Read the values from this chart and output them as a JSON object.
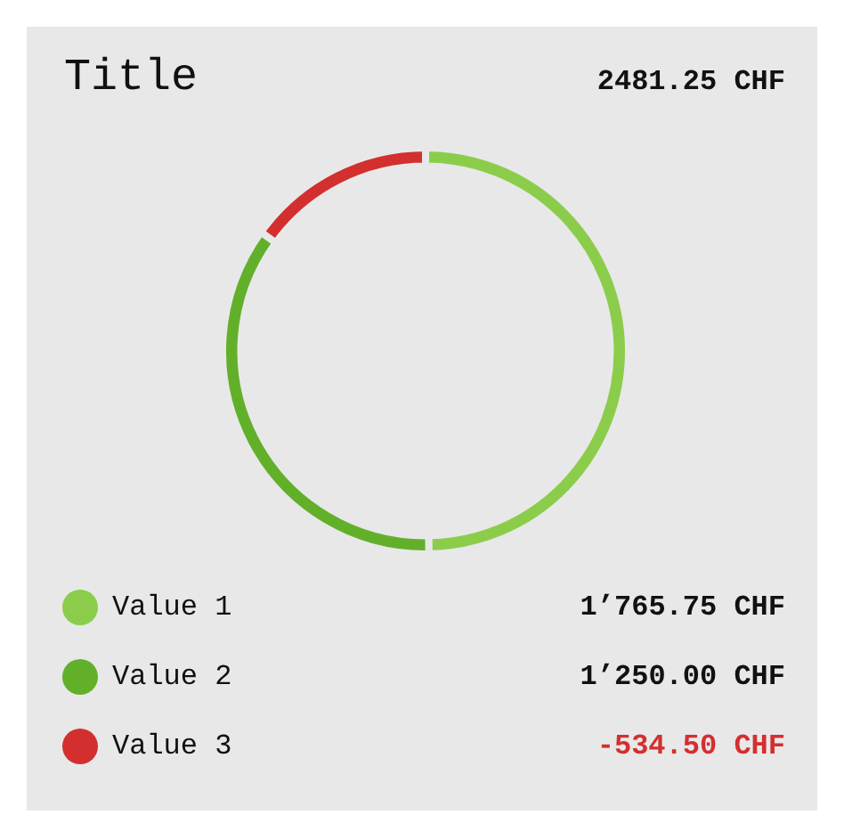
{
  "chart_data": {
    "type": "donut",
    "title": "Title",
    "subtitle": "2481.25 CHF",
    "categories": [
      "Value 1",
      "Value 2",
      "Value 3"
    ],
    "values": [
      49.74,
      35.21,
      15.05
    ],
    "annotations": [
      "1’765.75 CHF",
      "1’250.00 CHF",
      "-534.50 CHF"
    ],
    "colors": [
      "#8bcd4b",
      "#62b02a",
      "#d32f2f"
    ],
    "legend": "bottom"
  }
}
